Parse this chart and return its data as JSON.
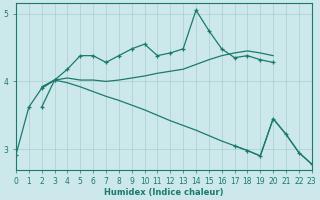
{
  "xlabel": "Humidex (Indice chaleur)",
  "bg_color": "#cce8ea",
  "grid_color": "#aacfcf",
  "line_color": "#1a7a6e",
  "xlim": [
    0,
    23
  ],
  "ylim": [
    2.7,
    5.15
  ],
  "yticks": [
    3,
    4,
    5
  ],
  "xticks": [
    0,
    1,
    2,
    3,
    4,
    5,
    6,
    7,
    8,
    9,
    10,
    11,
    12,
    13,
    14,
    15,
    16,
    17,
    18,
    19,
    20,
    21,
    22,
    23
  ],
  "curve1_x": [
    2,
    3,
    4,
    5,
    6,
    7,
    8,
    9,
    10,
    11,
    12,
    13,
    14,
    15,
    16,
    17,
    18,
    19,
    20
  ],
  "curve1_y": [
    3.62,
    4.02,
    4.18,
    4.38,
    4.38,
    4.28,
    4.38,
    4.48,
    4.55,
    4.38,
    4.42,
    4.48,
    5.05,
    4.75,
    4.48,
    4.35,
    4.38,
    4.32,
    4.28
  ],
  "curve2_x": [
    2,
    3,
    4,
    5,
    6,
    7,
    8,
    9,
    10,
    11,
    12,
    13,
    14,
    15,
    16,
    17,
    18,
    19,
    20
  ],
  "curve2_y": [
    3.9,
    4.02,
    4.05,
    4.02,
    4.02,
    4.0,
    4.02,
    4.05,
    4.08,
    4.12,
    4.15,
    4.18,
    4.25,
    4.32,
    4.38,
    4.42,
    4.45,
    4.42,
    4.38
  ],
  "curve3_x": [
    2,
    3,
    4,
    5,
    6,
    7,
    8,
    9,
    10,
    11,
    12,
    13,
    14,
    15,
    16,
    17,
    18,
    19,
    20,
    21,
    22,
    23
  ],
  "curve3_y": [
    3.92,
    4.02,
    3.98,
    3.92,
    3.85,
    3.78,
    3.72,
    3.65,
    3.58,
    3.5,
    3.42,
    3.35,
    3.28,
    3.2,
    3.12,
    3.05,
    2.98,
    2.9,
    3.45,
    3.22,
    2.95,
    2.78
  ],
  "curve4_x": [
    0,
    1,
    2,
    3
  ],
  "curve4_y": [
    2.92,
    3.62,
    3.9,
    4.02
  ],
  "curve4b_x": [
    17,
    18,
    19,
    20,
    21,
    22,
    23
  ],
  "curve4b_y": [
    3.05,
    2.98,
    2.9,
    3.45,
    3.22,
    2.95,
    2.78
  ]
}
